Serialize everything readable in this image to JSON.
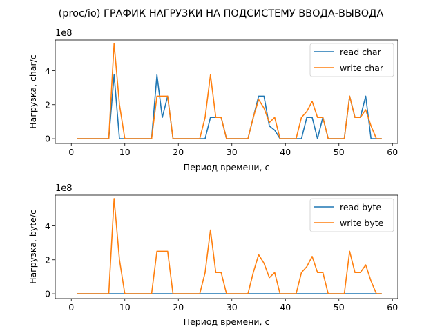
{
  "figure_title": "(proc/io) ГРАФИК НАГРУЗКИ НА ПОДСИСТЕМУ ВВОДА-ВЫВОДА",
  "colors": {
    "series1": "#1f77b4",
    "series2": "#ff7f0e"
  },
  "chart_data": [
    {
      "type": "line",
      "xlabel": "Период времени, с",
      "ylabel": "Нагрузка, char/с",
      "offset_label": "1e8",
      "xlim": [
        -3,
        61
      ],
      "ylim": [
        -0.28,
        5.8
      ],
      "xticks": [
        0,
        10,
        20,
        30,
        40,
        50,
        60
      ],
      "yticks": [
        0,
        2,
        4
      ],
      "legend_position": "top-right",
      "x": [
        1,
        2,
        3,
        4,
        5,
        6,
        7,
        8,
        9,
        10,
        11,
        12,
        13,
        14,
        15,
        16,
        17,
        18,
        19,
        20,
        21,
        22,
        23,
        24,
        25,
        26,
        27,
        28,
        29,
        30,
        31,
        32,
        33,
        34,
        35,
        36,
        37,
        38,
        39,
        40,
        41,
        42,
        43,
        44,
        45,
        46,
        47,
        48,
        49,
        50,
        51,
        52,
        53,
        54,
        55,
        56,
        57,
        58
      ],
      "series": [
        {
          "name": "read char",
          "values": [
            0,
            0,
            0,
            0,
            0,
            0,
            0,
            3.75,
            0,
            0,
            0,
            0,
            0,
            0,
            0,
            3.75,
            1.25,
            2.5,
            0,
            0,
            0,
            0,
            0,
            0,
            0,
            1.25,
            1.25,
            1.25,
            0,
            0,
            0,
            0,
            0,
            1.25,
            2.5,
            2.5,
            0.75,
            0.5,
            0,
            0,
            0,
            0,
            0,
            1.25,
            1.25,
            0,
            1.25,
            0,
            0,
            0,
            0,
            2.5,
            1.25,
            1.25,
            2.5,
            0,
            0,
            0
          ]
        },
        {
          "name": "write char",
          "values": [
            0,
            0,
            0,
            0,
            0,
            0,
            0,
            5.6,
            2.0,
            0,
            0,
            0,
            0,
            0,
            0,
            2.5,
            2.5,
            2.5,
            0,
            0,
            0,
            0,
            0,
            0,
            1.25,
            3.75,
            1.25,
            1.25,
            0,
            0,
            0,
            0,
            0,
            1.25,
            2.3,
            1.8,
            0.95,
            1.25,
            0,
            0,
            0,
            0,
            1.25,
            1.6,
            2.2,
            1.25,
            1.25,
            0,
            0,
            0,
            0,
            2.5,
            1.25,
            1.25,
            1.7,
            0.75,
            0,
            0
          ]
        }
      ]
    },
    {
      "type": "line",
      "xlabel": "Период времени, с",
      "ylabel": "Нагрузка, byte/с",
      "offset_label": "1e8",
      "xlim": [
        -3,
        61
      ],
      "ylim": [
        -0.28,
        5.8
      ],
      "xticks": [
        0,
        10,
        20,
        30,
        40,
        50,
        60
      ],
      "yticks": [
        0,
        2,
        4
      ],
      "legend_position": "top-right",
      "x": [
        1,
        2,
        3,
        4,
        5,
        6,
        7,
        8,
        9,
        10,
        11,
        12,
        13,
        14,
        15,
        16,
        17,
        18,
        19,
        20,
        21,
        22,
        23,
        24,
        25,
        26,
        27,
        28,
        29,
        30,
        31,
        32,
        33,
        34,
        35,
        36,
        37,
        38,
        39,
        40,
        41,
        42,
        43,
        44,
        45,
        46,
        47,
        48,
        49,
        50,
        51,
        52,
        53,
        54,
        55,
        56,
        57,
        58
      ],
      "series": [
        {
          "name": "read byte",
          "values": [
            0,
            0,
            0,
            0,
            0,
            0,
            0,
            0,
            0,
            0,
            0,
            0,
            0,
            0,
            0,
            0,
            0,
            0,
            0,
            0,
            0,
            0,
            0,
            0,
            0,
            0,
            0,
            0,
            0,
            0,
            0,
            0,
            0,
            0,
            0,
            0,
            0,
            0,
            0,
            0,
            0,
            0,
            0,
            0,
            0,
            0,
            0,
            0,
            0,
            0,
            0,
            0,
            0,
            0,
            0,
            0,
            0,
            0
          ]
        },
        {
          "name": "write byte",
          "values": [
            0,
            0,
            0,
            0,
            0,
            0,
            0,
            5.6,
            2.0,
            0,
            0,
            0,
            0,
            0,
            0,
            2.5,
            2.5,
            2.5,
            0,
            0,
            0,
            0,
            0,
            0,
            1.25,
            3.75,
            1.25,
            1.25,
            0,
            0,
            0,
            0,
            0,
            1.25,
            2.3,
            1.8,
            0.95,
            1.25,
            0,
            0,
            0,
            0,
            1.25,
            1.6,
            2.2,
            1.25,
            1.25,
            0,
            0,
            0,
            0,
            2.5,
            1.25,
            1.25,
            1.7,
            0.75,
            0,
            0
          ]
        }
      ]
    }
  ]
}
